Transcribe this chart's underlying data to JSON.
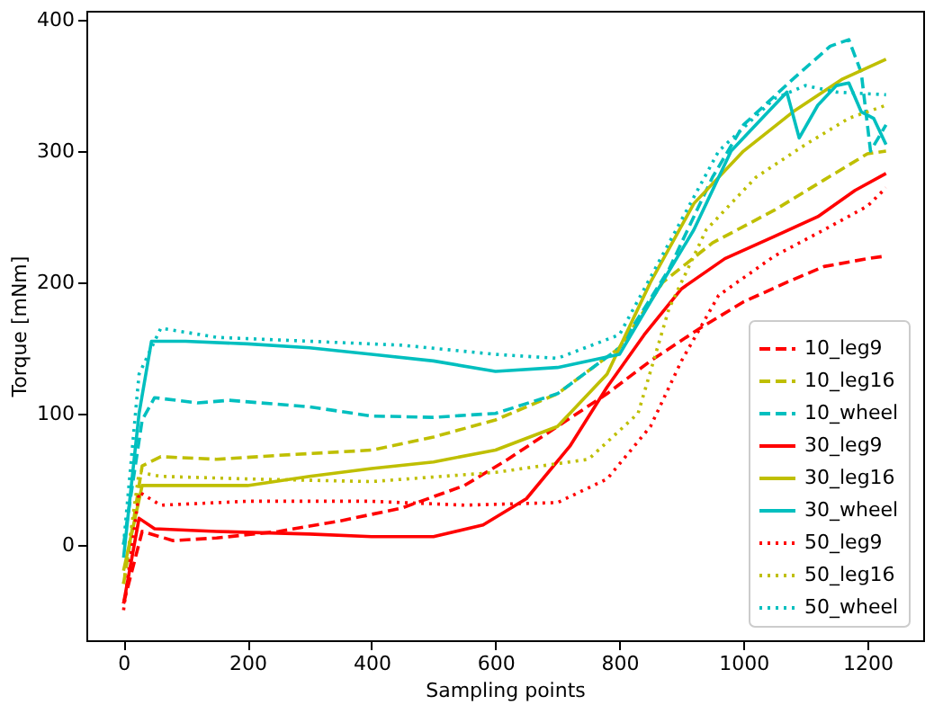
{
  "chart_data": {
    "type": "line",
    "xlabel": "Sampling points",
    "ylabel": "Torque [mNm]",
    "xlim": [
      -60,
      1290
    ],
    "ylim": [
      -73,
      407
    ],
    "xticks": [
      0,
      200,
      400,
      600,
      800,
      1000,
      1200
    ],
    "yticks": [
      0,
      100,
      200,
      300,
      400
    ],
    "grid": false,
    "legend": "bottom right",
    "marker": "none",
    "series": [
      {
        "name": "10_leg9",
        "color": "#ff0000",
        "line_style": "dashed",
        "x": [
          0,
          30,
          80,
          150,
          250,
          350,
          450,
          550,
          620,
          700,
          780,
          850,
          930,
          1000,
          1070,
          1130,
          1200,
          1230
        ],
        "values": [
          -45,
          10,
          3,
          5,
          10,
          18,
          28,
          45,
          65,
          90,
          115,
          140,
          165,
          185,
          200,
          212,
          218,
          220
        ]
      },
      {
        "name": "10_leg16",
        "color": "#bfbf00",
        "line_style": "dashed",
        "x": [
          0,
          30,
          60,
          150,
          250,
          400,
          500,
          600,
          700,
          800,
          870,
          950,
          1050,
          1130,
          1200,
          1230
        ],
        "values": [
          -30,
          60,
          67,
          65,
          68,
          72,
          82,
          95,
          115,
          150,
          200,
          230,
          255,
          278,
          298,
          300
        ]
      },
      {
        "name": "10_wheel",
        "color": "#00bfbf",
        "line_style": "dashed",
        "x": [
          0,
          30,
          50,
          120,
          170,
          300,
          400,
          500,
          600,
          700,
          800,
          880,
          950,
          1000,
          1080,
          1140,
          1170,
          1190,
          1205,
          1230
        ],
        "values": [
          0,
          95,
          112,
          108,
          110,
          105,
          98,
          97,
          100,
          115,
          150,
          210,
          280,
          320,
          355,
          380,
          385,
          360,
          300,
          320
        ]
      },
      {
        "name": "30_leg9",
        "color": "#ff0000",
        "line_style": "solid",
        "x": [
          0,
          25,
          50,
          150,
          300,
          400,
          500,
          580,
          650,
          720,
          780,
          840,
          900,
          970,
          1050,
          1120,
          1180,
          1230
        ],
        "values": [
          -45,
          20,
          12,
          10,
          8,
          6,
          6,
          15,
          35,
          75,
          120,
          160,
          195,
          218,
          235,
          250,
          270,
          283
        ]
      },
      {
        "name": "30_leg16",
        "color": "#bfbf00",
        "line_style": "solid",
        "x": [
          0,
          30,
          100,
          200,
          300,
          400,
          500,
          600,
          700,
          780,
          850,
          920,
          1000,
          1080,
          1160,
          1230
        ],
        "values": [
          -20,
          45,
          45,
          45,
          52,
          58,
          63,
          72,
          90,
          130,
          200,
          260,
          300,
          330,
          355,
          370
        ]
      },
      {
        "name": "30_wheel",
        "color": "#00bfbf",
        "line_style": "solid",
        "x": [
          0,
          25,
          45,
          100,
          200,
          300,
          400,
          500,
          600,
          700,
          800,
          850,
          920,
          980,
          1040,
          1070,
          1090,
          1120,
          1150,
          1170,
          1190,
          1210,
          1230
        ],
        "values": [
          -10,
          100,
          155,
          155,
          153,
          150,
          145,
          140,
          132,
          135,
          145,
          185,
          240,
          300,
          330,
          345,
          310,
          335,
          350,
          352,
          330,
          325,
          305
        ]
      },
      {
        "name": "50_leg9",
        "color": "#ff0000",
        "line_style": "dotted",
        "x": [
          0,
          25,
          60,
          200,
          400,
          550,
          700,
          780,
          850,
          900,
          960,
          1050,
          1130,
          1200,
          1230
        ],
        "values": [
          -50,
          40,
          30,
          33,
          33,
          30,
          32,
          50,
          90,
          140,
          190,
          220,
          240,
          258,
          272
        ]
      },
      {
        "name": "50_leg16",
        "color": "#bfbf00",
        "line_style": "dotted",
        "x": [
          0,
          25,
          60,
          200,
          400,
          600,
          750,
          830,
          880,
          940,
          1020,
          1100,
          1170,
          1230
        ],
        "values": [
          -30,
          55,
          52,
          50,
          48,
          55,
          65,
          100,
          180,
          240,
          280,
          305,
          325,
          335
        ]
      },
      {
        "name": "50_wheel",
        "color": "#00bfbf",
        "line_style": "dotted",
        "x": [
          0,
          25,
          60,
          150,
          300,
          450,
          600,
          700,
          800,
          880,
          960,
          1050,
          1100,
          1150,
          1230
        ],
        "values": [
          0,
          130,
          165,
          158,
          155,
          152,
          145,
          142,
          160,
          230,
          300,
          340,
          350,
          345,
          343
        ]
      }
    ]
  }
}
